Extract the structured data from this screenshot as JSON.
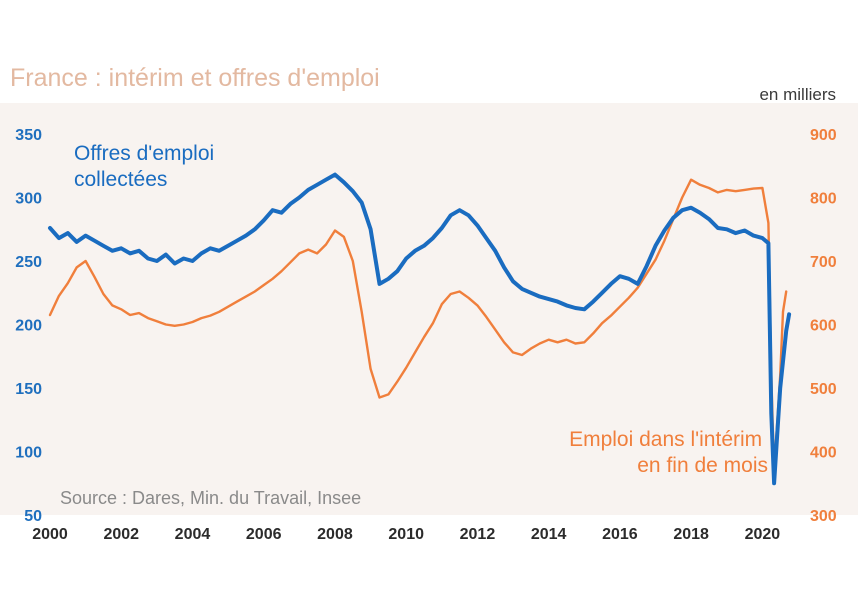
{
  "chart_data": {
    "type": "line",
    "title": "France : intérim et offres d'emploi",
    "unit_label": "en milliers",
    "source": "Source : Dares, Min. du Travail, Insee",
    "x_ticks": [
      "2000",
      "2002",
      "2004",
      "2006",
      "2008",
      "2010",
      "2012",
      "2014",
      "2016",
      "2018",
      "2020"
    ],
    "xlim": [
      2000,
      2021
    ],
    "y_left": {
      "ylim": [
        50,
        350
      ],
      "ticks": [
        50,
        100,
        150,
        200,
        250,
        300,
        350
      ],
      "color": "#1f6fbe"
    },
    "y_right": {
      "ylim": [
        300,
        900
      ],
      "ticks": [
        300,
        400,
        500,
        600,
        700,
        800,
        900
      ],
      "color": "#f07f3c"
    },
    "grid": false,
    "background_color": "#f8f3f0",
    "series": [
      {
        "name": "Offres d'emploi collectées",
        "label_lines": [
          "Offres d'emploi",
          "collectées"
        ],
        "axis": "left",
        "color": "#1a6cc0",
        "points": [
          [
            2000.0,
            276
          ],
          [
            2000.25,
            268
          ],
          [
            2000.5,
            272
          ],
          [
            2000.75,
            265
          ],
          [
            2001.0,
            270
          ],
          [
            2001.25,
            266
          ],
          [
            2001.5,
            262
          ],
          [
            2001.75,
            258
          ],
          [
            2002.0,
            260
          ],
          [
            2002.25,
            256
          ],
          [
            2002.5,
            258
          ],
          [
            2002.75,
            252
          ],
          [
            2003.0,
            250
          ],
          [
            2003.25,
            255
          ],
          [
            2003.5,
            248
          ],
          [
            2003.75,
            252
          ],
          [
            2004.0,
            250
          ],
          [
            2004.25,
            256
          ],
          [
            2004.5,
            260
          ],
          [
            2004.75,
            258
          ],
          [
            2005.0,
            262
          ],
          [
            2005.25,
            266
          ],
          [
            2005.5,
            270
          ],
          [
            2005.75,
            275
          ],
          [
            2006.0,
            282
          ],
          [
            2006.25,
            290
          ],
          [
            2006.5,
            288
          ],
          [
            2006.75,
            295
          ],
          [
            2007.0,
            300
          ],
          [
            2007.25,
            306
          ],
          [
            2007.5,
            310
          ],
          [
            2007.75,
            314
          ],
          [
            2008.0,
            318
          ],
          [
            2008.25,
            312
          ],
          [
            2008.5,
            305
          ],
          [
            2008.75,
            296
          ],
          [
            2009.0,
            275
          ],
          [
            2009.25,
            232
          ],
          [
            2009.5,
            236
          ],
          [
            2009.75,
            242
          ],
          [
            2010.0,
            252
          ],
          [
            2010.25,
            258
          ],
          [
            2010.5,
            262
          ],
          [
            2010.75,
            268
          ],
          [
            2011.0,
            276
          ],
          [
            2011.25,
            286
          ],
          [
            2011.5,
            290
          ],
          [
            2011.75,
            286
          ],
          [
            2012.0,
            278
          ],
          [
            2012.25,
            268
          ],
          [
            2012.5,
            258
          ],
          [
            2012.75,
            245
          ],
          [
            2013.0,
            234
          ],
          [
            2013.25,
            228
          ],
          [
            2013.5,
            225
          ],
          [
            2013.75,
            222
          ],
          [
            2014.0,
            220
          ],
          [
            2014.25,
            218
          ],
          [
            2014.5,
            215
          ],
          [
            2014.75,
            213
          ],
          [
            2015.0,
            212
          ],
          [
            2015.25,
            218
          ],
          [
            2015.5,
            225
          ],
          [
            2015.75,
            232
          ],
          [
            2016.0,
            238
          ],
          [
            2016.25,
            236
          ],
          [
            2016.5,
            232
          ],
          [
            2016.75,
            246
          ],
          [
            2017.0,
            262
          ],
          [
            2017.25,
            274
          ],
          [
            2017.5,
            284
          ],
          [
            2017.75,
            290
          ],
          [
            2018.0,
            292
          ],
          [
            2018.25,
            288
          ],
          [
            2018.5,
            283
          ],
          [
            2018.75,
            276
          ],
          [
            2019.0,
            275
          ],
          [
            2019.25,
            272
          ],
          [
            2019.5,
            274
          ],
          [
            2019.75,
            270
          ],
          [
            2020.0,
            268
          ],
          [
            2020.17,
            264
          ],
          [
            2020.25,
            130
          ],
          [
            2020.33,
            75
          ],
          [
            2020.5,
            150
          ],
          [
            2020.67,
            195
          ],
          [
            2020.75,
            208
          ]
        ]
      },
      {
        "name": "Emploi dans l'intérim en fin de mois",
        "label_lines": [
          "Emploi dans l'intérim",
          "en fin de mois"
        ],
        "axis": "right",
        "color": "#f07f3c",
        "points": [
          [
            2000.0,
            615
          ],
          [
            2000.25,
            645
          ],
          [
            2000.5,
            665
          ],
          [
            2000.75,
            690
          ],
          [
            2001.0,
            700
          ],
          [
            2001.25,
            675
          ],
          [
            2001.5,
            648
          ],
          [
            2001.75,
            630
          ],
          [
            2002.0,
            624
          ],
          [
            2002.25,
            615
          ],
          [
            2002.5,
            618
          ],
          [
            2002.75,
            610
          ],
          [
            2003.0,
            605
          ],
          [
            2003.25,
            600
          ],
          [
            2003.5,
            598
          ],
          [
            2003.75,
            600
          ],
          [
            2004.0,
            604
          ],
          [
            2004.25,
            610
          ],
          [
            2004.5,
            614
          ],
          [
            2004.75,
            620
          ],
          [
            2005.0,
            628
          ],
          [
            2005.25,
            636
          ],
          [
            2005.5,
            644
          ],
          [
            2005.75,
            652
          ],
          [
            2006.0,
            662
          ],
          [
            2006.25,
            672
          ],
          [
            2006.5,
            684
          ],
          [
            2006.75,
            698
          ],
          [
            2007.0,
            712
          ],
          [
            2007.25,
            718
          ],
          [
            2007.5,
            712
          ],
          [
            2007.75,
            726
          ],
          [
            2008.0,
            748
          ],
          [
            2008.25,
            738
          ],
          [
            2008.5,
            700
          ],
          [
            2008.75,
            620
          ],
          [
            2009.0,
            530
          ],
          [
            2009.25,
            485
          ],
          [
            2009.5,
            490
          ],
          [
            2009.75,
            510
          ],
          [
            2010.0,
            532
          ],
          [
            2010.25,
            556
          ],
          [
            2010.5,
            580
          ],
          [
            2010.75,
            602
          ],
          [
            2011.0,
            632
          ],
          [
            2011.25,
            648
          ],
          [
            2011.5,
            652
          ],
          [
            2011.75,
            642
          ],
          [
            2012.0,
            630
          ],
          [
            2012.25,
            612
          ],
          [
            2012.5,
            592
          ],
          [
            2012.75,
            572
          ],
          [
            2013.0,
            556
          ],
          [
            2013.25,
            552
          ],
          [
            2013.5,
            562
          ],
          [
            2013.75,
            570
          ],
          [
            2014.0,
            576
          ],
          [
            2014.25,
            572
          ],
          [
            2014.5,
            576
          ],
          [
            2014.75,
            570
          ],
          [
            2015.0,
            572
          ],
          [
            2015.25,
            586
          ],
          [
            2015.5,
            602
          ],
          [
            2015.75,
            614
          ],
          [
            2016.0,
            628
          ],
          [
            2016.25,
            642
          ],
          [
            2016.5,
            658
          ],
          [
            2016.75,
            680
          ],
          [
            2017.0,
            702
          ],
          [
            2017.25,
            732
          ],
          [
            2017.5,
            766
          ],
          [
            2017.75,
            800
          ],
          [
            2018.0,
            828
          ],
          [
            2018.25,
            820
          ],
          [
            2018.5,
            815
          ],
          [
            2018.75,
            808
          ],
          [
            2019.0,
            812
          ],
          [
            2019.25,
            810
          ],
          [
            2019.5,
            812
          ],
          [
            2019.75,
            814
          ],
          [
            2020.0,
            815
          ],
          [
            2020.17,
            760
          ],
          [
            2020.25,
            520
          ],
          [
            2020.33,
            368
          ],
          [
            2020.5,
            520
          ],
          [
            2020.58,
            620
          ],
          [
            2020.67,
            652
          ]
        ]
      }
    ]
  }
}
